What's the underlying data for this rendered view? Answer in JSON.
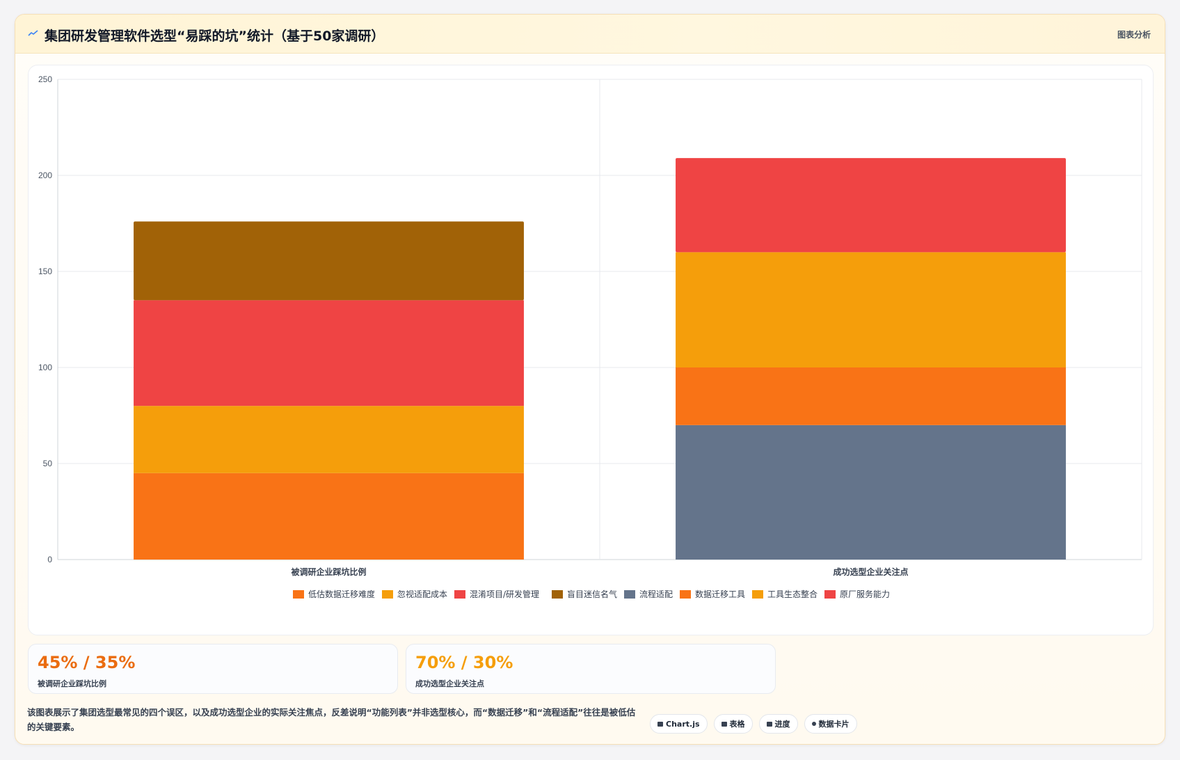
{
  "header": {
    "title": "集团研发管理软件选型“易踩的坑”统计（基于50家调研）",
    "action_label": "图表分析"
  },
  "chart_data": {
    "type": "bar",
    "stacked": true,
    "categories": [
      "被调研企业踩坑比例",
      "成功选型企业关注点"
    ],
    "ylim": [
      0,
      250
    ],
    "yticks": [
      0,
      50,
      100,
      150,
      200,
      250
    ],
    "grid": true,
    "legend_position": "bottom",
    "series": [
      {
        "name": "低估数据迁移难度",
        "color": "#f97316",
        "values": [
          45,
          0
        ]
      },
      {
        "name": "忽视适配成本",
        "color": "#f59e0b",
        "values": [
          35,
          0
        ]
      },
      {
        "name": "混淆项目/研发管理",
        "color": "#ef4444",
        "values": [
          55,
          0
        ]
      },
      {
        "name": "盲目迷信名气",
        "color": "#a16207",
        "values": [
          41,
          0
        ]
      },
      {
        "name": "流程适配",
        "color": "#64748b",
        "values": [
          0,
          70
        ]
      },
      {
        "name": "数据迁移工具",
        "color": "#f97316",
        "values": [
          0,
          30
        ]
      },
      {
        "name": "工具生态整合",
        "color": "#f59e0b",
        "values": [
          0,
          60
        ]
      },
      {
        "name": "原厂服务能力",
        "color": "#ef4444",
        "values": [
          0,
          49
        ]
      }
    ]
  },
  "stats": [
    {
      "value": "45% / 35%",
      "label": "被调研企业踩坑比例",
      "color": "#ea6c10"
    },
    {
      "value": "70% / 30%",
      "label": "成功选型企业关注点",
      "color": "#f59e0b"
    }
  ],
  "footnote": "该图表展示了集团选型最常见的四个误区，以及成功选型企业的实际关注焦点，反差说明“功能列表”并非选型核心，而“数据迁移”和“流程适配”往往是被低估的关键要素。",
  "tags": [
    "Chart.js",
    "表格",
    "进度",
    "数据卡片"
  ],
  "icons": {
    "header": "trend-line-icon",
    "tags": [
      "chart-icon",
      "table-icon",
      "progress-icon",
      "card-icon"
    ]
  }
}
